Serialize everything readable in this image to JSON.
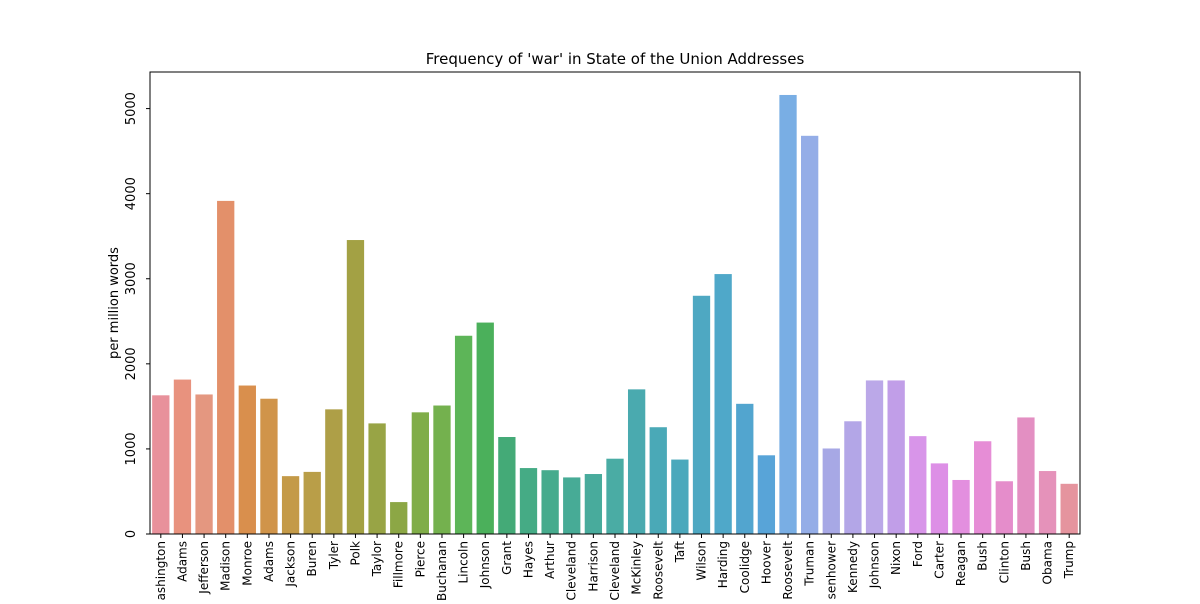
{
  "chart_data": {
    "type": "bar",
    "title": "Frequency of 'war' in State of the Union Addresses",
    "xlabel": "",
    "ylabel": "per million words",
    "ylim": [
      0,
      5430
    ],
    "yticks": [
      0,
      1000,
      2000,
      3000,
      4000,
      5000
    ],
    "grid": false,
    "categories": [
      "Washington",
      "Adams",
      "Jefferson",
      "Madison",
      "Monroe",
      "Adams",
      "Jackson",
      "Buren",
      "Tyler",
      "Polk",
      "Taylor",
      "Fillmore",
      "Pierce",
      "Buchanan",
      "Lincoln",
      "Johnson",
      "Grant",
      "Hayes",
      "Arthur",
      "Cleveland",
      "Harrison",
      "Cleveland",
      "McKinley",
      "Roosevelt",
      "Taft",
      "Wilson",
      "Harding",
      "Coolidge",
      "Hoover",
      "Roosevelt",
      "Truman",
      "Eisenhower",
      "Kennedy",
      "Johnson",
      "Nixon",
      "Ford",
      "Carter",
      "Reagan",
      "Bush",
      "Clinton",
      "Bush",
      "Obama",
      "Trump"
    ],
    "values": [
      1630,
      1815,
      1640,
      3915,
      1745,
      1590,
      680,
      730,
      1465,
      3455,
      1300,
      375,
      1430,
      1510,
      2330,
      2485,
      1140,
      775,
      750,
      665,
      705,
      885,
      1700,
      1255,
      875,
      2800,
      3055,
      1530,
      925,
      5160,
      4680,
      1005,
      1325,
      1805,
      1805,
      1150,
      830,
      635,
      1090,
      620,
      1370,
      740,
      590
    ],
    "colors": [
      "#e8919b",
      "#e8927e",
      "#e49780",
      "#e3906a",
      "#d98f4d",
      "#d0944a",
      "#c49a48",
      "#b99e48",
      "#ae9f47",
      "#a3a144",
      "#98a445",
      "#8ca745",
      "#80ad48",
      "#74b14e",
      "#5db558",
      "#4bb05b",
      "#44aa77",
      "#45ab85",
      "#46ab8d",
      "#47ab96",
      "#48ab9c",
      "#4aaca4",
      "#4aaaaf",
      "#4aa9b7",
      "#4ba8bc",
      "#4ea8c2",
      "#4fa8c9",
      "#52a5cf",
      "#58a4d8",
      "#79aee4",
      "#94ade7",
      "#a7a8e5",
      "#b3a6e7",
      "#bba8e8",
      "#c19ee8",
      "#d895e9",
      "#dd8fe6",
      "#e38fdf",
      "#e68dd6",
      "#e58dcb",
      "#e38fc2",
      "#e592ba",
      "#e5949e"
    ]
  }
}
